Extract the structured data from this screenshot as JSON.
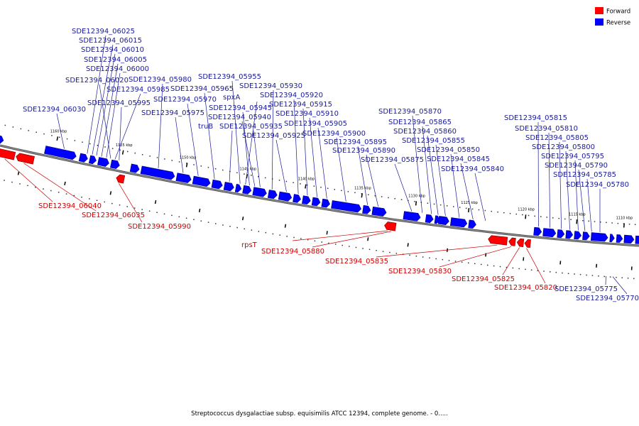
{
  "legend": {
    "items": [
      {
        "label": "Forward",
        "color": "#ff0000"
      },
      {
        "label": "Reverse",
        "color": "#0000ff"
      }
    ]
  },
  "caption": "Streptococcus dysgalactiae subsp. equisimilis ATCC 12394, complete genome. - 0.....",
  "colors": {
    "forward": "#ff0000",
    "reverse": "#0000ff",
    "forward_label": "#cc0000",
    "reverse_label": "#1a1a99",
    "backbone": "#777777"
  },
  "ticks": [
    {
      "label": "1160 kbp",
      "t": 0.073
    },
    {
      "label": "1155 kbp",
      "t": 0.165
    },
    {
      "label": "1150 kbp",
      "t": 0.257
    },
    {
      "label": "1145 kbp",
      "t": 0.346
    },
    {
      "label": "1140 kbp",
      "t": 0.435
    },
    {
      "label": "1135 kbp",
      "t": 0.523
    },
    {
      "label": "1130 kbp",
      "t": 0.61
    },
    {
      "label": "1125 kbp",
      "t": 0.697
    },
    {
      "label": "1120 kbp",
      "t": 0.794
    },
    {
      "label": "1115 kbp",
      "t": 0.884
    },
    {
      "label": "1110 kbp",
      "t": 0.97
    }
  ],
  "reverse_genes": [
    {
      "t0": -0.005,
      "t1": 0.003
    },
    {
      "t0": 0.06,
      "t1": 0.103
    },
    {
      "t0": 0.108,
      "t1": 0.119
    },
    {
      "t0": 0.122,
      "t1": 0.131
    },
    {
      "t0": 0.134,
      "t1": 0.149
    },
    {
      "t0": 0.152,
      "t1": 0.164
    },
    {
      "t0": 0.18,
      "t1": 0.192
    },
    {
      "t0": 0.195,
      "t1": 0.243
    },
    {
      "t0": 0.246,
      "t1": 0.267
    },
    {
      "t0": 0.27,
      "t1": 0.295
    },
    {
      "t0": 0.298,
      "t1": 0.313
    },
    {
      "t0": 0.316,
      "t1": 0.33
    },
    {
      "t0": 0.333,
      "t1": 0.341
    },
    {
      "t0": 0.344,
      "t1": 0.356
    },
    {
      "t0": 0.359,
      "t1": 0.379
    },
    {
      "t0": 0.382,
      "t1": 0.395
    },
    {
      "t0": 0.398,
      "t1": 0.417
    },
    {
      "t0": 0.42,
      "t1": 0.431
    },
    {
      "t0": 0.434,
      "t1": 0.446
    },
    {
      "t0": 0.449,
      "t1": 0.461
    },
    {
      "t0": 0.464,
      "t1": 0.476
    },
    {
      "t0": 0.479,
      "t1": 0.525
    },
    {
      "t0": 0.528,
      "t1": 0.54
    },
    {
      "t0": 0.543,
      "t1": 0.565
    },
    {
      "t0": 0.593,
      "t1": 0.62
    },
    {
      "t0": 0.629,
      "t1": 0.641
    },
    {
      "t0": 0.644,
      "t1": 0.652
    },
    {
      "t0": 0.65,
      "t1": 0.667
    },
    {
      "t0": 0.67,
      "t1": 0.697
    },
    {
      "t0": 0.7,
      "t1": 0.712
    },
    {
      "t0": 0.811,
      "t1": 0.824
    },
    {
      "t0": 0.827,
      "t1": 0.849
    },
    {
      "t0": 0.852,
      "t1": 0.864
    },
    {
      "t0": 0.867,
      "t1": 0.879
    },
    {
      "t0": 0.882,
      "t1": 0.894
    },
    {
      "t0": 0.897,
      "t1": 0.909
    },
    {
      "t0": 0.912,
      "t1": 0.942
    },
    {
      "t0": 0.946,
      "t1": 0.954
    },
    {
      "t0": 0.958,
      "t1": 0.969
    },
    {
      "t0": 0.972,
      "t1": 0.99
    },
    {
      "t0": 0.993,
      "t1": 1.01
    }
  ],
  "forward_genes": [
    {
      "t0": -0.01,
      "t1": 0.022
    },
    {
      "t0": 0.024,
      "t1": 0.048
    },
    {
      "t0": 0.163,
      "t1": 0.174
    },
    {
      "t0": 0.565,
      "t1": 0.583
    },
    {
      "t0": 0.735,
      "t1": 0.767
    },
    {
      "t0": 0.77,
      "t1": 0.781
    },
    {
      "t0": 0.784,
      "t1": 0.795
    },
    {
      "t0": 0.797,
      "t1": 0.807
    }
  ],
  "reverse_labels": [
    {
      "text": "SDE12394_06030",
      "t": 0.085
    },
    {
      "text": "SDE12394_06025",
      "t": 0.117
    },
    {
      "text": "SDE12394_06015",
      "t": 0.124
    },
    {
      "text": "SDE12394_06010",
      "t": 0.13
    },
    {
      "text": "SDE12394_06005",
      "t": 0.137
    },
    {
      "text": "SDE12394_06000",
      "t": 0.144
    },
    {
      "text": "SDE12394_06020",
      "t": 0.15
    },
    {
      "text": "SDE12394_05985",
      "t": 0.156
    },
    {
      "text": "SDE12394_05995",
      "t": 0.162
    },
    {
      "text": "SDE12394_05980",
      "t": 0.218
    },
    {
      "text": "SDE12394_05975",
      "t": 0.254
    },
    {
      "text": "SDE12394_05970",
      "t": 0.276
    },
    {
      "text": "SDE12394_05965",
      "t": 0.3
    },
    {
      "text": "truB",
      "t": 0.322
    },
    {
      "text": "SDE12394_05955",
      "t": 0.338
    },
    {
      "text": "spxA",
      "t": 0.346
    },
    {
      "text": "SDE12394_05945",
      "t": 0.352
    },
    {
      "text": "SDE12394_05940",
      "t": 0.36
    },
    {
      "text": "SDE12394_05935",
      "t": 0.368
    },
    {
      "text": "SDE12394_05930",
      "t": 0.386
    },
    {
      "text": "SDE12394_05925",
      "t": 0.408
    },
    {
      "text": "SDE12394_05920",
      "t": 0.426
    },
    {
      "text": "SDE12394_05915",
      "t": 0.44
    },
    {
      "text": "SDE12394_05910",
      "t": 0.455
    },
    {
      "text": "SDE12394_05905",
      "t": 0.47
    },
    {
      "text": "SDE12394_05900",
      "t": 0.5
    },
    {
      "text": "SDE12394_05895",
      "t": 0.534
    },
    {
      "text": "SDE12394_05890",
      "t": 0.551
    },
    {
      "text": "SDE12394_05875",
      "t": 0.605
    },
    {
      "text": "SDE12394_05870",
      "t": 0.622
    },
    {
      "text": "SDE12394_05865",
      "t": 0.637
    },
    {
      "text": "SDE12394_05860",
      "t": 0.648
    },
    {
      "text": "SDE12394_05855",
      "t": 0.66
    },
    {
      "text": "SDE12394_05850",
      "t": 0.683
    },
    {
      "text": "SDE12394_05845",
      "t": 0.706
    },
    {
      "text": "SDE12394_05840",
      "t": 0.727
    },
    {
      "text": "SDE12394_05815",
      "t": 0.818
    },
    {
      "text": "SDE12394_05810",
      "t": 0.838
    },
    {
      "text": "SDE12394_05805",
      "t": 0.858
    },
    {
      "text": "SDE12394_05800",
      "t": 0.873
    },
    {
      "text": "SDE12394_05795",
      "t": 0.888
    },
    {
      "text": "SDE12394_05790",
      "t": 0.9
    },
    {
      "text": "SDE12394_05785",
      "t": 0.912
    },
    {
      "text": "SDE12394_05780",
      "t": 0.927
    }
  ],
  "forward_labels": [
    {
      "text": "SDE12394_06040",
      "t": 0.01
    },
    {
      "text": "SDE12394_06035",
      "t": 0.036
    },
    {
      "text": "SDE12394_05990",
      "t": 0.168
    },
    {
      "text": "rpsT",
      "t": 0.571
    },
    {
      "text": "SDE12394_05880",
      "t": 0.577
    },
    {
      "text": "SDE12394_05835",
      "t": 0.751
    },
    {
      "text": "SDE12394_05830",
      "t": 0.775
    },
    {
      "text": "SDE12394_05825",
      "t": 0.789
    },
    {
      "text": "SDE12394_05820",
      "t": 0.801
    },
    {
      "text": "SDE12394_05775",
      "t": 0.944
    },
    {
      "text": "SDE12394_05770",
      "t": 0.956
    }
  ]
}
